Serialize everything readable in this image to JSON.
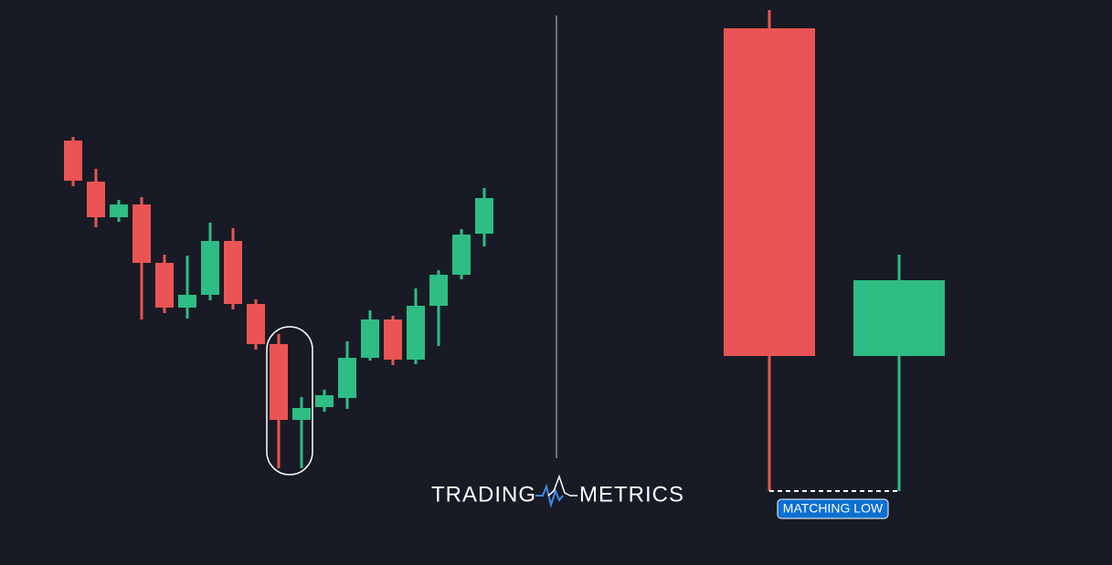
{
  "logo": {
    "left": "TRADING",
    "right": "METRICS"
  },
  "annotation": "MATCHING LOW"
}
